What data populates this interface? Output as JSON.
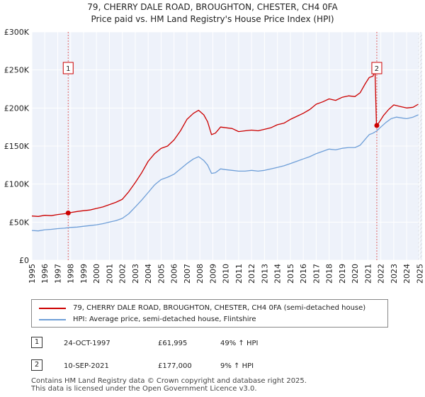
{
  "title_line1": "79, CHERRY DALE ROAD, BROUGHTON, CHESTER, CH4 0FA",
  "title_line2": "Price paid vs. HM Land Registry's House Price Index (HPI)",
  "chart_data": {
    "type": "line",
    "xlim": [
      1995.0,
      2025.2
    ],
    "ylim": [
      0,
      300000
    ],
    "yticks": [
      0,
      50000,
      100000,
      150000,
      200000,
      250000,
      300000
    ],
    "ytick_labels": [
      "£0",
      "£50K",
      "£100K",
      "£150K",
      "£200K",
      "£250K",
      "£300K"
    ],
    "xticks": [
      1995,
      1996,
      1997,
      1998,
      1999,
      2000,
      2001,
      2002,
      2003,
      2004,
      2005,
      2006,
      2007,
      2008,
      2009,
      2010,
      2011,
      2012,
      2013,
      2014,
      2015,
      2016,
      2017,
      2018,
      2019,
      2020,
      2021,
      2022,
      2023,
      2024,
      2025
    ],
    "grid": true,
    "hatch_after": 2024.9,
    "series": [
      {
        "name": "79, CHERRY DALE ROAD, BROUGHTON, CHESTER, CH4 0FA (semi-detached house)",
        "color": "#cc0000",
        "points": [
          [
            1995.0,
            58000
          ],
          [
            1995.5,
            57500
          ],
          [
            1996.0,
            59000
          ],
          [
            1996.5,
            58500
          ],
          [
            1997.0,
            60000
          ],
          [
            1997.5,
            61000
          ],
          [
            1997.81,
            61995
          ],
          [
            1998.0,
            62500
          ],
          [
            1998.5,
            64000
          ],
          [
            1999.0,
            65000
          ],
          [
            1999.5,
            66000
          ],
          [
            2000.0,
            68000
          ],
          [
            2000.5,
            70000
          ],
          [
            2001.0,
            73000
          ],
          [
            2001.5,
            76000
          ],
          [
            2002.0,
            80000
          ],
          [
            2002.5,
            90000
          ],
          [
            2003.0,
            102000
          ],
          [
            2003.5,
            115000
          ],
          [
            2004.0,
            130000
          ],
          [
            2004.5,
            140000
          ],
          [
            2005.0,
            147000
          ],
          [
            2005.5,
            150000
          ],
          [
            2006.0,
            158000
          ],
          [
            2006.5,
            170000
          ],
          [
            2007.0,
            185000
          ],
          [
            2007.5,
            193000
          ],
          [
            2007.9,
            197000
          ],
          [
            2008.3,
            191000
          ],
          [
            2008.6,
            182000
          ],
          [
            2008.9,
            165000
          ],
          [
            2009.2,
            167000
          ],
          [
            2009.6,
            175000
          ],
          [
            2010.0,
            174000
          ],
          [
            2010.5,
            173000
          ],
          [
            2011.0,
            169000
          ],
          [
            2011.5,
            170000
          ],
          [
            2012.0,
            171000
          ],
          [
            2012.5,
            170000
          ],
          [
            2013.0,
            172000
          ],
          [
            2013.5,
            174000
          ],
          [
            2014.0,
            178000
          ],
          [
            2014.5,
            180000
          ],
          [
            2015.0,
            185000
          ],
          [
            2015.5,
            189000
          ],
          [
            2016.0,
            193000
          ],
          [
            2016.5,
            198000
          ],
          [
            2017.0,
            205000
          ],
          [
            2017.5,
            208000
          ],
          [
            2018.0,
            212000
          ],
          [
            2018.5,
            210000
          ],
          [
            2019.0,
            214000
          ],
          [
            2019.5,
            216000
          ],
          [
            2020.0,
            215000
          ],
          [
            2020.4,
            220000
          ],
          [
            2020.8,
            232000
          ],
          [
            2021.1,
            240000
          ],
          [
            2021.4,
            242000
          ],
          [
            2021.55,
            250000
          ],
          [
            2021.66,
            180000
          ],
          [
            2021.69,
            177000
          ],
          [
            2021.9,
            182000
          ],
          [
            2022.2,
            190000
          ],
          [
            2022.6,
            198000
          ],
          [
            2023.0,
            204000
          ],
          [
            2023.5,
            202000
          ],
          [
            2024.0,
            200000
          ],
          [
            2024.5,
            201000
          ],
          [
            2024.9,
            205000
          ]
        ]
      },
      {
        "name": "HPI: Average price, semi-detached house, Flintshire",
        "color": "#6f9fd8",
        "points": [
          [
            1995.0,
            39000
          ],
          [
            1995.5,
            38500
          ],
          [
            1996.0,
            40000
          ],
          [
            1996.5,
            40500
          ],
          [
            1997.0,
            41500
          ],
          [
            1997.5,
            42000
          ],
          [
            1998.0,
            43000
          ],
          [
            1998.5,
            43500
          ],
          [
            1999.0,
            44500
          ],
          [
            1999.5,
            45500
          ],
          [
            2000.0,
            46500
          ],
          [
            2000.5,
            48000
          ],
          [
            2001.0,
            50000
          ],
          [
            2001.5,
            52000
          ],
          [
            2002.0,
            55000
          ],
          [
            2002.5,
            61000
          ],
          [
            2003.0,
            70000
          ],
          [
            2003.5,
            79000
          ],
          [
            2004.0,
            89000
          ],
          [
            2004.5,
            99000
          ],
          [
            2005.0,
            106000
          ],
          [
            2005.5,
            109000
          ],
          [
            2006.0,
            113000
          ],
          [
            2006.5,
            120000
          ],
          [
            2007.0,
            127000
          ],
          [
            2007.5,
            133000
          ],
          [
            2007.9,
            136000
          ],
          [
            2008.3,
            131000
          ],
          [
            2008.6,
            125000
          ],
          [
            2008.9,
            114000
          ],
          [
            2009.2,
            115000
          ],
          [
            2009.6,
            120000
          ],
          [
            2010.0,
            119000
          ],
          [
            2010.5,
            118000
          ],
          [
            2011.0,
            117000
          ],
          [
            2011.5,
            117000
          ],
          [
            2012.0,
            118000
          ],
          [
            2012.5,
            117000
          ],
          [
            2013.0,
            118000
          ],
          [
            2013.5,
            120000
          ],
          [
            2014.0,
            122000
          ],
          [
            2014.5,
            124000
          ],
          [
            2015.0,
            127000
          ],
          [
            2015.5,
            130000
          ],
          [
            2016.0,
            133000
          ],
          [
            2016.5,
            136000
          ],
          [
            2017.0,
            140000
          ],
          [
            2017.5,
            143000
          ],
          [
            2018.0,
            146000
          ],
          [
            2018.5,
            145000
          ],
          [
            2019.0,
            147000
          ],
          [
            2019.5,
            148000
          ],
          [
            2020.0,
            148000
          ],
          [
            2020.4,
            151000
          ],
          [
            2020.8,
            159000
          ],
          [
            2021.1,
            165000
          ],
          [
            2021.4,
            167000
          ],
          [
            2021.69,
            170000
          ],
          [
            2022.0,
            175000
          ],
          [
            2022.4,
            181000
          ],
          [
            2022.8,
            186000
          ],
          [
            2023.2,
            188000
          ],
          [
            2023.6,
            187000
          ],
          [
            2024.0,
            186000
          ],
          [
            2024.5,
            188000
          ],
          [
            2024.9,
            191000
          ]
        ]
      }
    ],
    "markers": [
      {
        "label": "1",
        "x": 1997.81,
        "y": 61995
      },
      {
        "label": "2",
        "x": 2021.69,
        "y": 177000
      }
    ]
  },
  "legend": {
    "property_label": "79, CHERRY DALE ROAD, BROUGHTON, CHESTER, CH4 0FA (semi-detached house)",
    "hpi_label": "HPI: Average price, semi-detached house, Flintshire",
    "property_color": "#cc0000",
    "hpi_color": "#6f9fd8"
  },
  "sales": [
    {
      "num": "1",
      "date": "24-OCT-1997",
      "price": "£61,995",
      "hpi": "49% ↑ HPI"
    },
    {
      "num": "2",
      "date": "10-SEP-2021",
      "price": "£177,000",
      "hpi": "9% ↑ HPI"
    }
  ],
  "footer_line1": "Contains HM Land Registry data © Crown copyright and database right 2025.",
  "footer_line2": "This data is licensed under the Open Government Licence v3.0."
}
